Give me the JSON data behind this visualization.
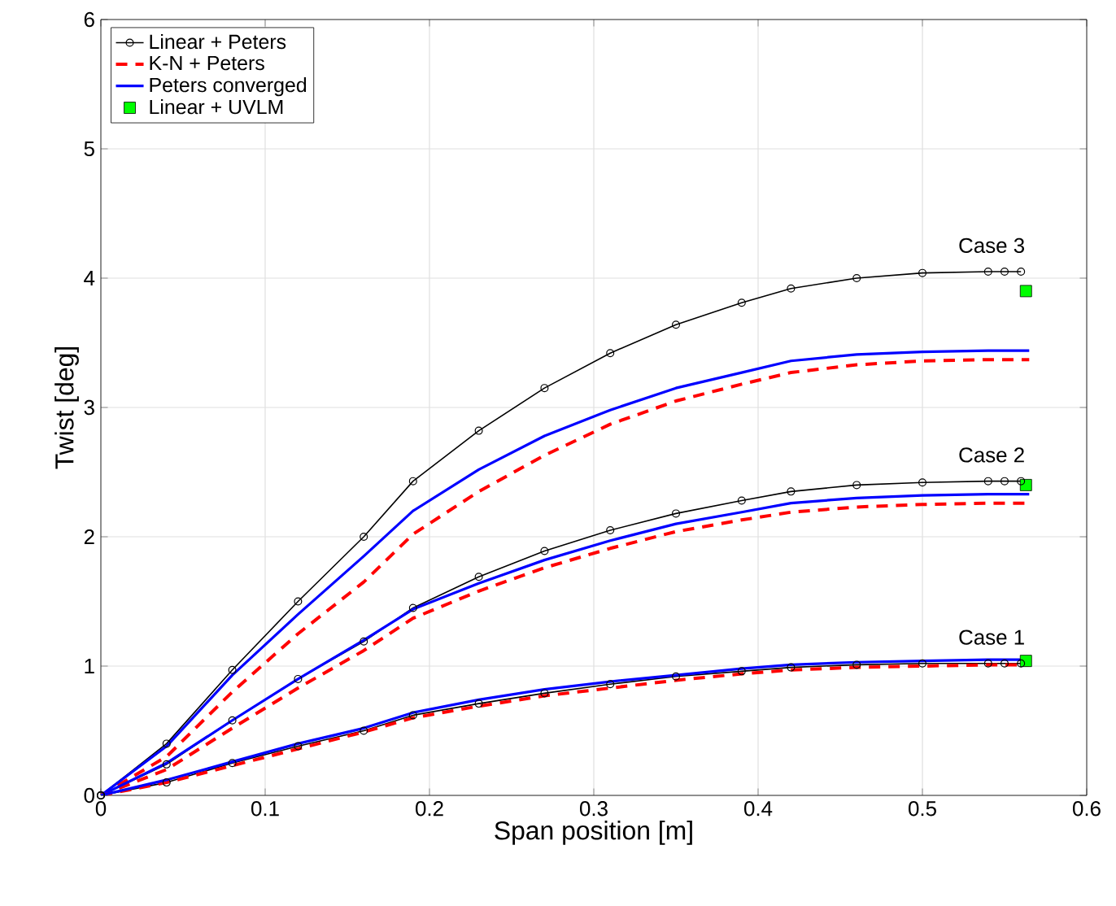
{
  "chart_data": {
    "type": "line",
    "xlabel": "Span position [m]",
    "ylabel": "Twist [deg]",
    "xlim": [
      0,
      0.6
    ],
    "ylim": [
      0,
      6
    ],
    "xticks": [
      0,
      0.1,
      0.2,
      0.3,
      0.4,
      0.5,
      0.6
    ],
    "yticks": [
      0,
      1,
      2,
      3,
      4,
      5,
      6
    ],
    "grid": true,
    "legend": "top left",
    "annotations": [
      "Case 3",
      "Case 2",
      "Case 1"
    ],
    "series": [
      {
        "name": "Linear + Peters",
        "color": "#000000",
        "marker": "circle",
        "line_style": "solid",
        "x": [
          0,
          0.04,
          0.08,
          0.12,
          0.16,
          0.19,
          0.23,
          0.27,
          0.31,
          0.35,
          0.39,
          0.42,
          0.46,
          0.5,
          0.54,
          0.55,
          0.56
        ],
        "values": [
          0,
          0.4,
          0.97,
          1.5,
          2.0,
          2.43,
          2.82,
          3.15,
          3.42,
          3.64,
          3.81,
          3.92,
          4.0,
          4.04,
          4.05,
          4.05,
          4.05
        ]
      },
      {
        "name": "K-N + Peters",
        "color": "#ff0000",
        "marker": "none",
        "line_style": "dashed",
        "x": [
          0,
          0.04,
          0.08,
          0.12,
          0.16,
          0.19,
          0.23,
          0.27,
          0.31,
          0.35,
          0.39,
          0.42,
          0.46,
          0.5,
          0.54,
          0.565
        ],
        "values": [
          0,
          0.3,
          0.8,
          1.25,
          1.65,
          2.02,
          2.35,
          2.63,
          2.87,
          3.05,
          3.18,
          3.27,
          3.33,
          3.36,
          3.37,
          3.37
        ]
      },
      {
        "name": "Peters converged",
        "color": "#0000ff",
        "marker": "none",
        "line_style": "solid",
        "x": [
          0,
          0.04,
          0.08,
          0.12,
          0.16,
          0.19,
          0.23,
          0.27,
          0.31,
          0.35,
          0.39,
          0.42,
          0.46,
          0.5,
          0.54,
          0.565
        ],
        "values": [
          0,
          0.38,
          0.93,
          1.4,
          1.85,
          2.2,
          2.52,
          2.78,
          2.98,
          3.15,
          3.27,
          3.36,
          3.41,
          3.43,
          3.44,
          3.44
        ]
      },
      {
        "name": "Linear + UVLM",
        "type": "scatter",
        "color": "#00ff00",
        "marker": "square",
        "x": [
          0.563,
          0.563,
          0.563
        ],
        "values": [
          3.9,
          2.4,
          1.04
        ]
      },
      {
        "color": "#000000",
        "marker": "circle",
        "line_style": "solid",
        "x": [
          0,
          0.04,
          0.08,
          0.12,
          0.16,
          0.19,
          0.23,
          0.27,
          0.31,
          0.35,
          0.39,
          0.42,
          0.46,
          0.5,
          0.54,
          0.55,
          0.56
        ],
        "values": [
          0,
          0.24,
          0.58,
          0.9,
          1.19,
          1.45,
          1.69,
          1.89,
          2.05,
          2.18,
          2.28,
          2.35,
          2.4,
          2.42,
          2.43,
          2.43,
          2.43
        ]
      },
      {
        "color": "#ff0000",
        "marker": "none",
        "line_style": "dashed",
        "x": [
          0,
          0.04,
          0.08,
          0.12,
          0.16,
          0.19,
          0.23,
          0.27,
          0.31,
          0.35,
          0.39,
          0.42,
          0.46,
          0.5,
          0.54,
          0.565
        ],
        "values": [
          0,
          0.2,
          0.52,
          0.83,
          1.12,
          1.37,
          1.58,
          1.76,
          1.91,
          2.04,
          2.13,
          2.19,
          2.23,
          2.25,
          2.26,
          2.26
        ]
      },
      {
        "color": "#0000ff",
        "marker": "none",
        "line_style": "solid",
        "x": [
          0,
          0.04,
          0.08,
          0.12,
          0.16,
          0.19,
          0.23,
          0.27,
          0.31,
          0.35,
          0.39,
          0.42,
          0.46,
          0.5,
          0.54,
          0.565
        ],
        "values": [
          0,
          0.25,
          0.58,
          0.9,
          1.2,
          1.44,
          1.64,
          1.82,
          1.97,
          2.1,
          2.19,
          2.26,
          2.3,
          2.32,
          2.33,
          2.33
        ]
      },
      {
        "color": "#000000",
        "marker": "circle",
        "line_style": "solid",
        "x": [
          0,
          0.04,
          0.08,
          0.12,
          0.16,
          0.19,
          0.23,
          0.27,
          0.31,
          0.35,
          0.39,
          0.42,
          0.46,
          0.5,
          0.54,
          0.55,
          0.56
        ],
        "values": [
          0,
          0.1,
          0.25,
          0.38,
          0.5,
          0.62,
          0.71,
          0.79,
          0.86,
          0.92,
          0.96,
          0.99,
          1.01,
          1.02,
          1.02,
          1.02,
          1.02
        ]
      },
      {
        "color": "#ff0000",
        "marker": "none",
        "line_style": "dashed",
        "x": [
          0,
          0.04,
          0.08,
          0.12,
          0.16,
          0.19,
          0.23,
          0.27,
          0.31,
          0.35,
          0.39,
          0.42,
          0.46,
          0.5,
          0.54,
          0.565
        ],
        "values": [
          0,
          0.1,
          0.23,
          0.36,
          0.49,
          0.6,
          0.69,
          0.77,
          0.83,
          0.89,
          0.94,
          0.97,
          0.99,
          1.0,
          1.01,
          1.01
        ]
      },
      {
        "color": "#0000ff",
        "marker": "none",
        "line_style": "solid",
        "x": [
          0,
          0.04,
          0.08,
          0.12,
          0.16,
          0.19,
          0.23,
          0.27,
          0.31,
          0.35,
          0.39,
          0.42,
          0.46,
          0.5,
          0.54,
          0.565
        ],
        "values": [
          0,
          0.12,
          0.26,
          0.4,
          0.52,
          0.64,
          0.74,
          0.82,
          0.88,
          0.93,
          0.98,
          1.01,
          1.03,
          1.04,
          1.05,
          1.05
        ]
      }
    ]
  }
}
